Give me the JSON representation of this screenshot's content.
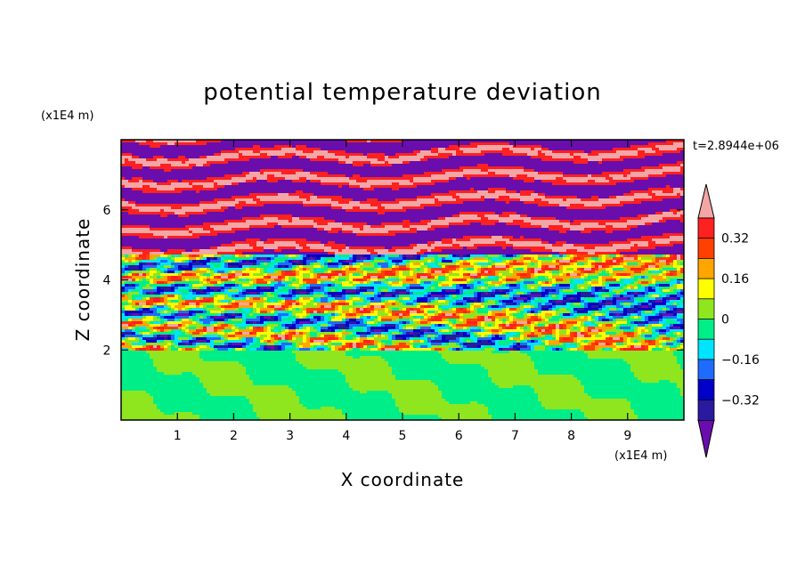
{
  "chart_data": {
    "type": "heatmap",
    "title": "potential temperature deviation",
    "xlabel": "X coordinate",
    "ylabel": "Z coordinate",
    "x_unit": "(x1E4 m)",
    "y_unit": "(x1E4 m)",
    "time_label": "t=2.8944e+06",
    "xlim": [
      0,
      10
    ],
    "ylim": [
      0,
      8
    ],
    "x_ticks": [
      1,
      2,
      3,
      4,
      5,
      6,
      7,
      8,
      9
    ],
    "y_ticks": [
      2,
      4,
      6
    ],
    "x_tick_labels": [
      "1",
      "2",
      "3",
      "4",
      "5",
      "6",
      "7",
      "8",
      "9"
    ],
    "y_tick_labels": [
      "2",
      "4",
      "6"
    ],
    "colorbar": {
      "extend": "both",
      "levels": [
        -0.4,
        -0.32,
        -0.24,
        -0.16,
        -0.08,
        0,
        0.08,
        0.16,
        0.24,
        0.32,
        0.4
      ],
      "colors": [
        "#6a0dad",
        "#2a1aa0",
        "#0000c8",
        "#1e6cff",
        "#00e5ff",
        "#00ee88",
        "#8fe61e",
        "#ffff00",
        "#ffa500",
        "#ff4000",
        "#ff2020",
        "#f4a6a6"
      ],
      "tick_values": [
        -0.32,
        -0.16,
        0,
        0.16,
        0.32
      ],
      "tick_labels": [
        "−0.32",
        "−0.16",
        "0",
        "0.16",
        "0.32"
      ]
    },
    "regions": [
      {
        "z_range": [
          0,
          2
        ],
        "description_values": [
          -0.04,
          0.04
        ]
      },
      {
        "z_range": [
          2,
          4.5
        ],
        "description_values": [
          -0.4,
          0.4
        ]
      },
      {
        "z_range": [
          4.5,
          8
        ],
        "description_values": [
          -0.4,
          0.4
        ]
      }
    ]
  }
}
